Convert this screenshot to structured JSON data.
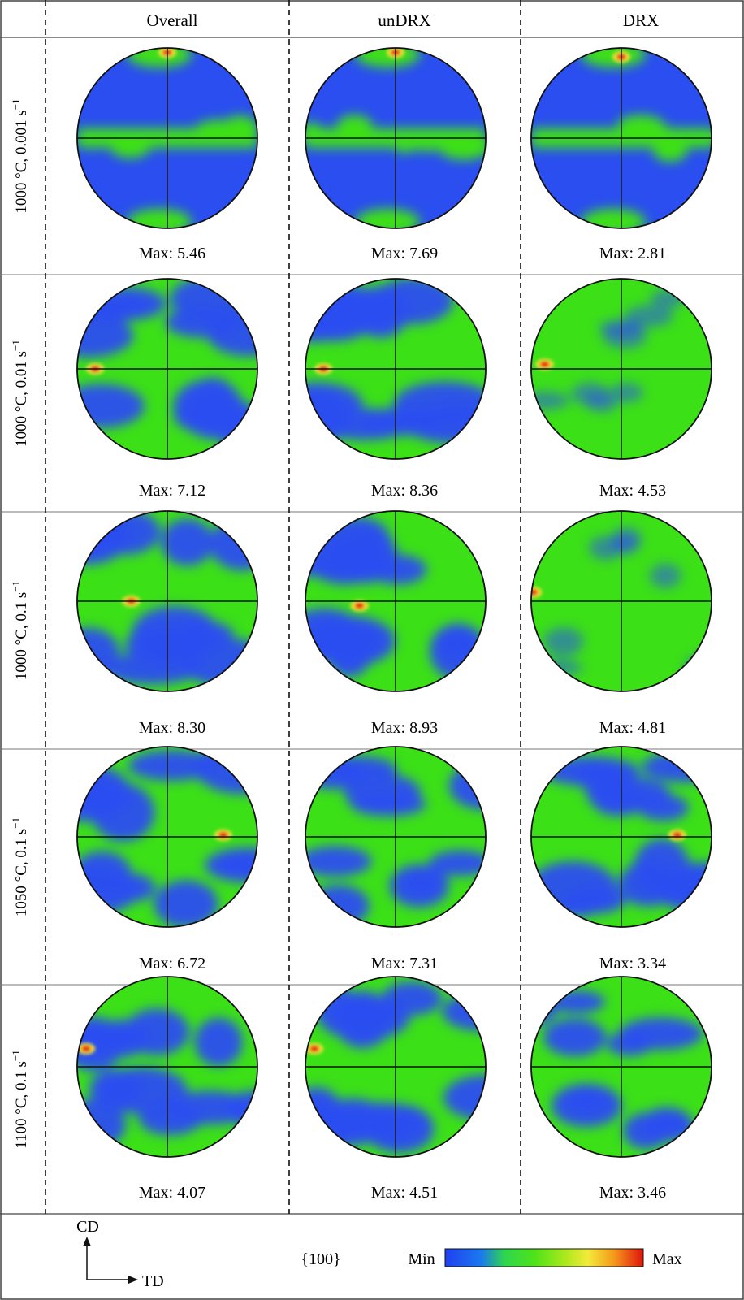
{
  "columns": [
    "Overall",
    "unDRX",
    "DRX"
  ],
  "rows": [
    {
      "label": "1000 °C, 0.001 s",
      "sup": "−1",
      "max": [
        "Max: 5.46",
        "Max: 7.69",
        "Max: 2.81"
      ]
    },
    {
      "label": "1000 °C, 0.01 s",
      "sup": "−1",
      "max": [
        "Max: 7.12",
        "Max: 8.36",
        "Max: 4.53"
      ]
    },
    {
      "label": "1000 °C, 0.1 s",
      "sup": "−1",
      "max": [
        "Max: 8.30",
        "Max: 8.93",
        "Max: 4.81"
      ]
    },
    {
      "label": "1050 °C, 0.1 s",
      "sup": "−1",
      "max": [
        "Max: 6.72",
        "Max: 7.31",
        "Max: 3.34"
      ]
    },
    {
      "label": "1100 °C, 0.1 s",
      "sup": "−1",
      "max": [
        "Max: 4.07",
        "Max: 4.51",
        "Max: 3.46"
      ]
    }
  ],
  "footer": {
    "axis_cd": "CD",
    "axis_td": "TD",
    "plane": "{100}",
    "scale_min": "Min",
    "scale_max": "Max"
  },
  "colors": {
    "low": "#2a4ef0",
    "mid": "#3ce016",
    "high": "#e51a0c",
    "grid": "#333333"
  }
}
